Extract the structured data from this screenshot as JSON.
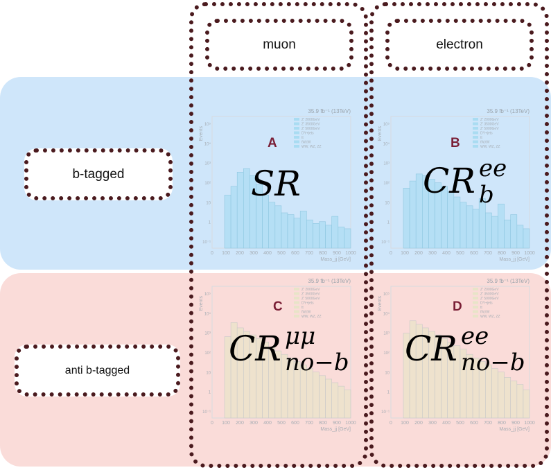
{
  "columns": {
    "muon": "muon",
    "electron": "electron"
  },
  "rows": {
    "btag": "b-tagged",
    "antibtag": "anti b-tagged"
  },
  "colors": {
    "blue_band": "#cfe6fa",
    "pink_band": "#fadcd9",
    "dotted": "#4a1a1e",
    "letter": "#7a1f36"
  },
  "panels": [
    {
      "letter": "A",
      "region_main": "SR",
      "region_sup": "",
      "region_sub": ""
    },
    {
      "letter": "B",
      "region_main": "CR",
      "region_sup": "ee",
      "region_sub": "b"
    },
    {
      "letter": "C",
      "region_main": "CR",
      "region_sup": "μμ",
      "region_sub": "no−b"
    },
    {
      "letter": "D",
      "region_main": "CR",
      "region_sup": "ee",
      "region_sub": "no−b"
    }
  ],
  "plot": {
    "lumi": "35.9 fb⁻¹ (13TeV)",
    "ylabel": "Events",
    "xlabel": "Mass_jj [GeV]",
    "xticks": [
      "0",
      "100",
      "200",
      "300",
      "400",
      "500",
      "600",
      "700",
      "800",
      "900",
      "1000"
    ],
    "yticks": [
      "10⁻¹",
      "1",
      "10",
      "10²",
      "10³",
      "10⁴",
      "10⁵"
    ],
    "legend": [
      "Z' 2000GeV",
      "Z' 3500GeV",
      "Z' 5000GeV",
      "DY+jets",
      "tt",
      "tW,tW",
      "WW, WZ, ZZ"
    ]
  }
}
